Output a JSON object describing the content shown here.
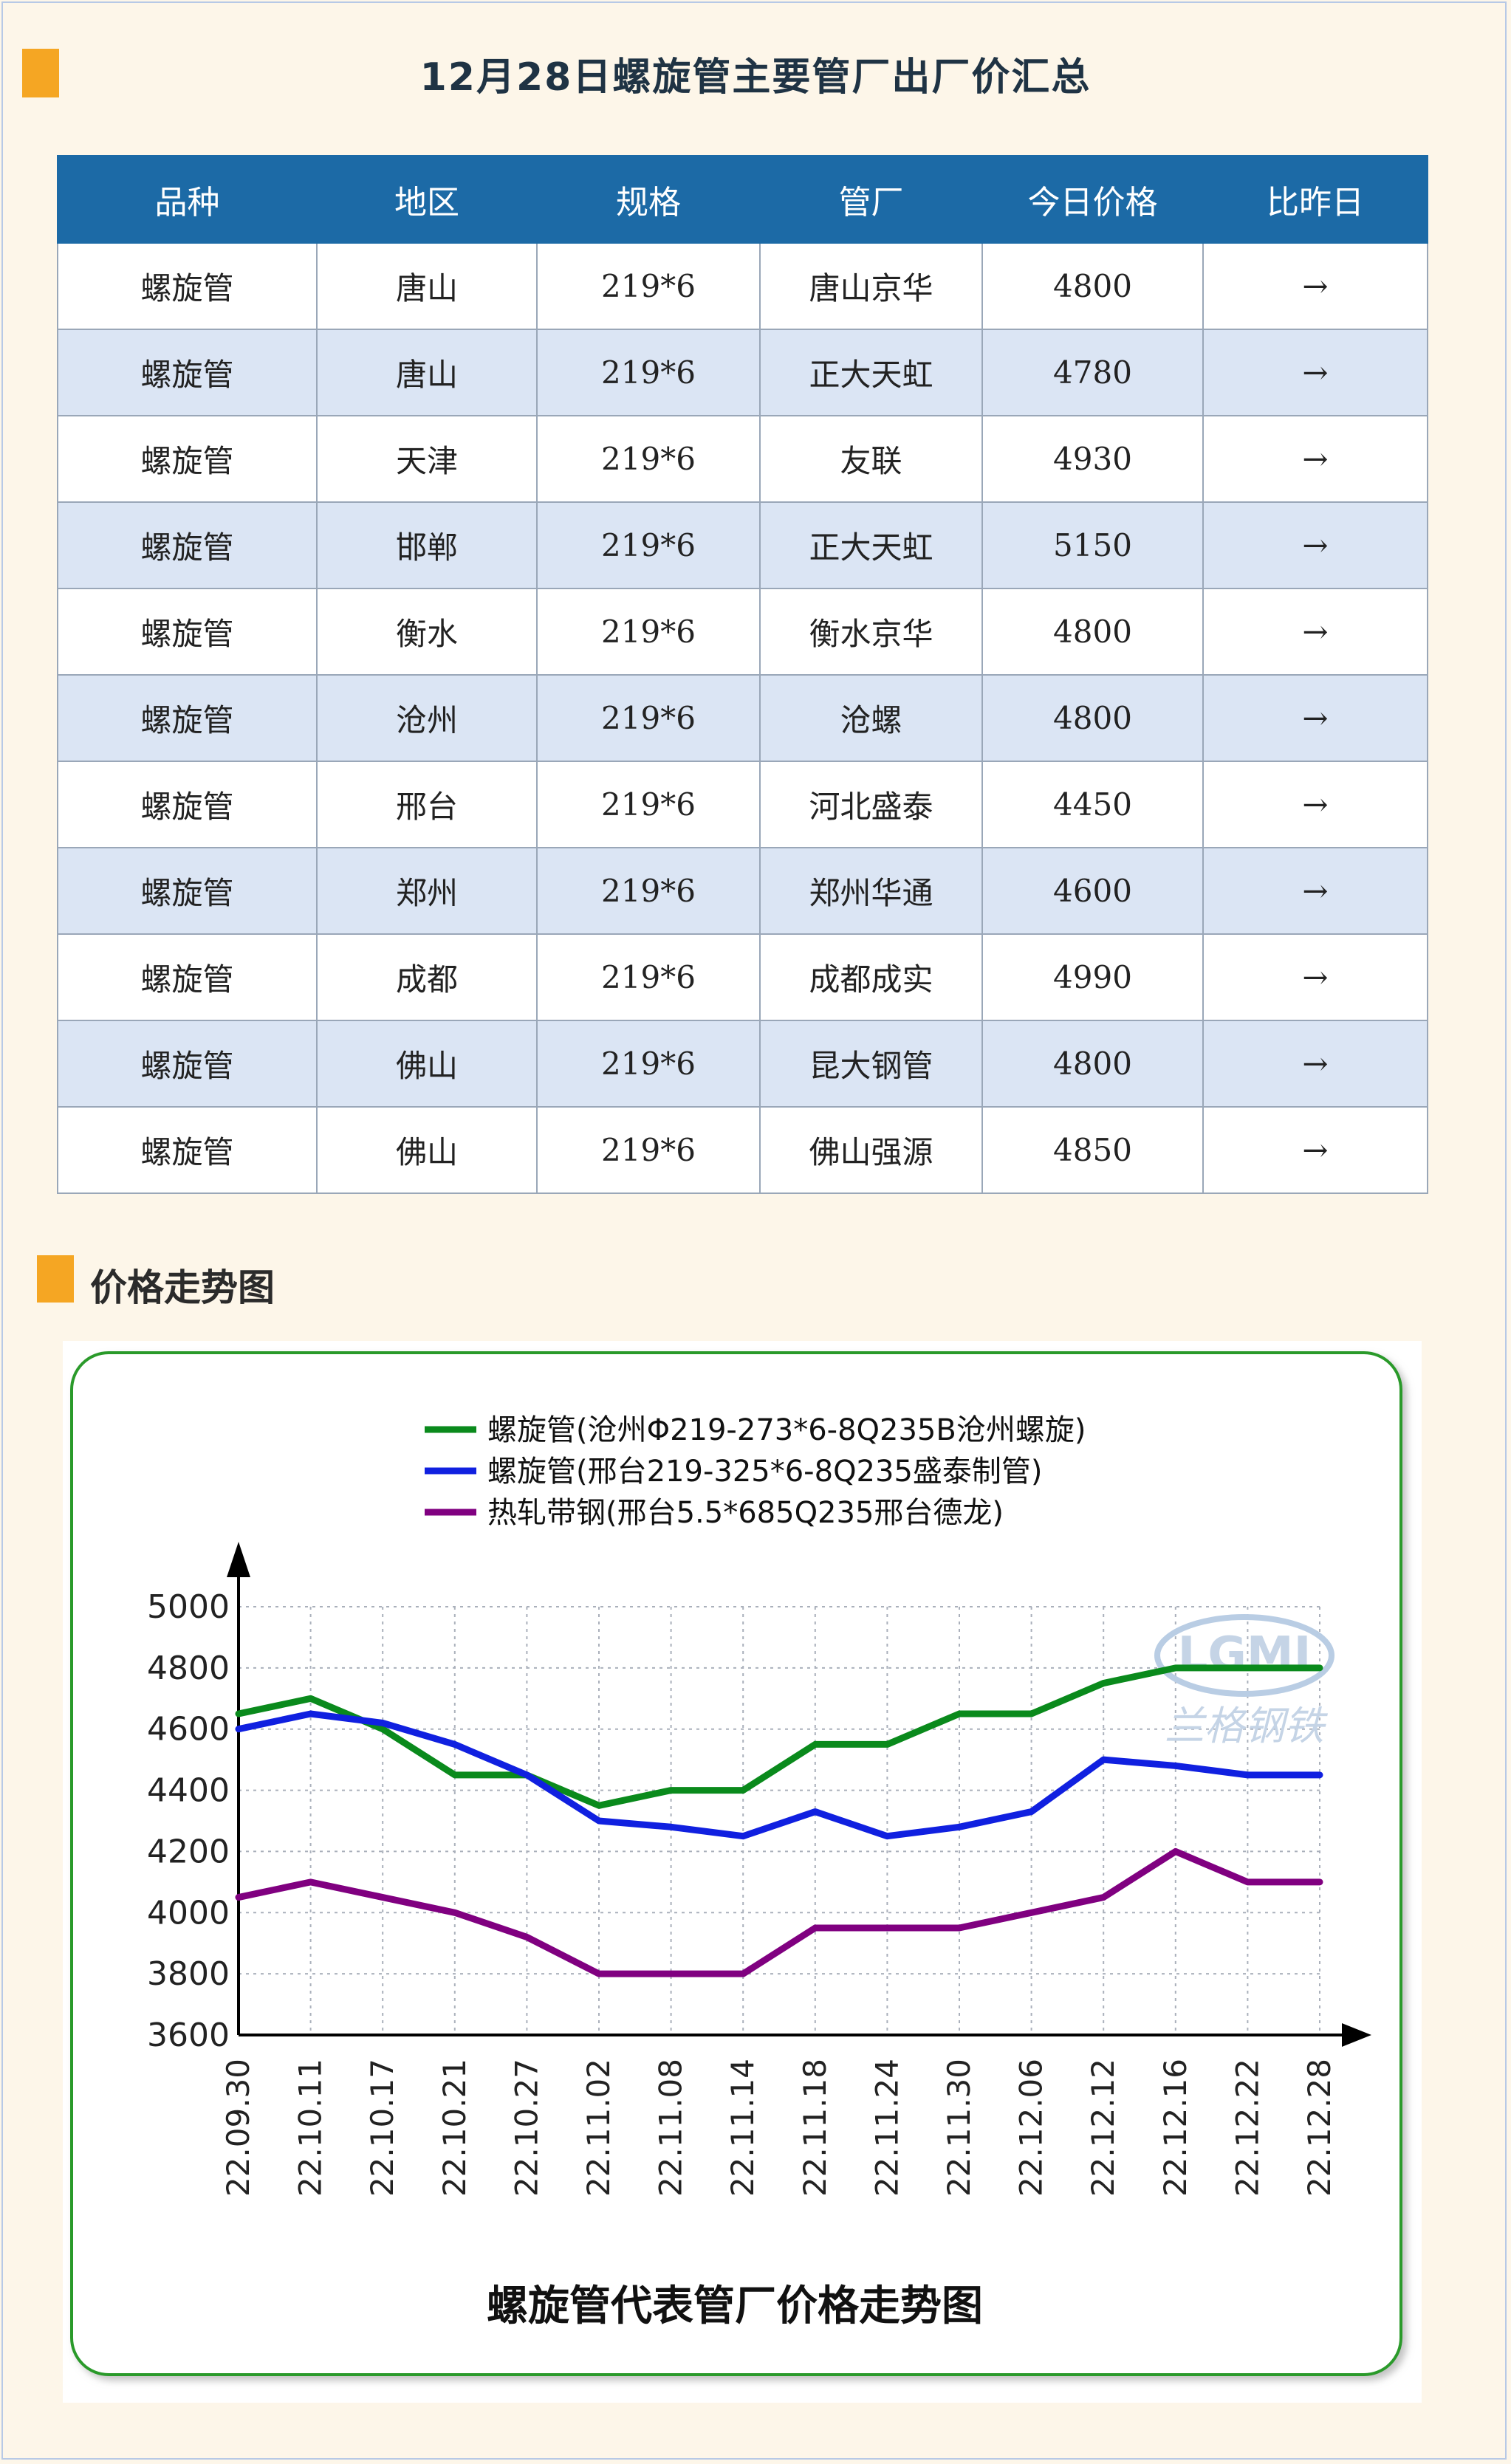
{
  "header": {
    "title": "12月28日螺旋管主要管厂出厂价汇总"
  },
  "table": {
    "columns": [
      "品种",
      "地区",
      "规格",
      "管厂",
      "今日价格",
      "比昨日"
    ],
    "rows": [
      [
        "螺旋管",
        "唐山",
        "219*6",
        "唐山京华",
        "4800",
        "→"
      ],
      [
        "螺旋管",
        "唐山",
        "219*6",
        "正大天虹",
        "4780",
        "→"
      ],
      [
        "螺旋管",
        "天津",
        "219*6",
        "友联",
        "4930",
        "→"
      ],
      [
        "螺旋管",
        "邯郸",
        "219*6",
        "正大天虹",
        "5150",
        "→"
      ],
      [
        "螺旋管",
        "衡水",
        "219*6",
        "衡水京华",
        "4800",
        "→"
      ],
      [
        "螺旋管",
        "沧州",
        "219*6",
        "沧螺",
        "4800",
        "→"
      ],
      [
        "螺旋管",
        "邢台",
        "219*6",
        "河北盛泰",
        "4450",
        "→"
      ],
      [
        "螺旋管",
        "郑州",
        "219*6",
        "郑州华通",
        "4600",
        "→"
      ],
      [
        "螺旋管",
        "成都",
        "219*6",
        "成都成实",
        "4990",
        "→"
      ],
      [
        "螺旋管",
        "佛山",
        "219*6",
        "昆大钢管",
        "4800",
        "→"
      ],
      [
        "螺旋管",
        "佛山",
        "219*6",
        "佛山强源",
        "4850",
        "→"
      ]
    ]
  },
  "section2": {
    "title": "价格走势图"
  },
  "chart_data": {
    "type": "line",
    "title": "螺旋管代表管厂价格走势图",
    "legend_position": "top",
    "grid": true,
    "watermark": "LGMI 兰格钢铁",
    "ylim": [
      3600,
      5000
    ],
    "yticks": [
      3600,
      3800,
      4000,
      4200,
      4400,
      4600,
      4800,
      5000
    ],
    "xticks": [
      "22.09.30",
      "22.10.11",
      "22.10.17",
      "22.10.21",
      "22.10.27",
      "22.11.02",
      "22.11.08",
      "22.11.14",
      "22.11.18",
      "22.11.24",
      "22.11.30",
      "22.12.06",
      "22.12.12",
      "22.12.16",
      "22.12.22",
      "22.12.28"
    ],
    "x": [
      "22.09.30",
      "22.10.11",
      "22.10.17",
      "22.10.21",
      "22.10.27",
      "22.11.02",
      "22.11.08",
      "22.11.14",
      "22.11.18",
      "22.11.24",
      "22.11.30",
      "22.12.06",
      "22.12.12",
      "22.12.16",
      "22.12.22",
      "22.12.28"
    ],
    "series": [
      {
        "name": "螺旋管(沧州Φ219-273*6-8Q235B沧州螺旋)",
        "color": "#0a8a1c",
        "values": [
          4650,
          4700,
          4600,
          4450,
          4450,
          4350,
          4400,
          4400,
          4550,
          4550,
          4650,
          4650,
          4750,
          4800,
          4800,
          4800
        ]
      },
      {
        "name": "螺旋管(邢台219-325*6-8Q235盛泰制管)",
        "color": "#1020e0",
        "values": [
          4600,
          4650,
          4620,
          4550,
          4450,
          4300,
          4280,
          4250,
          4330,
          4250,
          4280,
          4330,
          4500,
          4480,
          4450,
          4450
        ]
      },
      {
        "name": "热轧带钢(邢台5.5*685Q235邢台德龙)",
        "color": "#800080",
        "values": [
          4050,
          4100,
          4050,
          4000,
          3920,
          3800,
          3800,
          3800,
          3950,
          3950,
          3950,
          4000,
          4050,
          4200,
          4100,
          4100
        ]
      }
    ]
  }
}
